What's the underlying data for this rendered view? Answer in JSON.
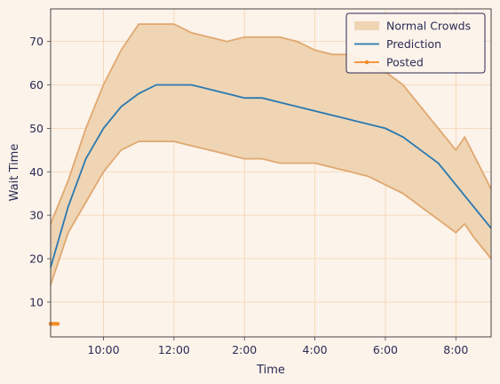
{
  "chart_data": {
    "type": "line",
    "title": "",
    "xlabel": "Time",
    "ylabel": "Wait Time",
    "xlim": [
      "08:30",
      "21:00"
    ],
    "ylim": [
      2,
      77.5
    ],
    "grid": true,
    "legend_position": "top-right",
    "x_ticks": [
      "10:00",
      "12:00",
      "2:00",
      "4:00",
      "6:00",
      "8:00"
    ],
    "y_ticks": [
      10,
      20,
      30,
      40,
      50,
      60,
      70
    ],
    "colors": {
      "background": "#fcf3ea",
      "band_fill": "#efd5b4",
      "band_edge": "#e0a870",
      "prediction": "#2a78b0",
      "posted": "#f28c28",
      "grid": "#f4d2ad",
      "text": "#2b2b55"
    },
    "series": [
      {
        "name": "Normal Crowds",
        "kind": "band",
        "x": [
          "08:30",
          "09:00",
          "09:30",
          "10:00",
          "10:30",
          "11:00",
          "11:30",
          "12:00",
          "12:30",
          "13:00",
          "13:30",
          "14:00",
          "14:30",
          "15:00",
          "15:30",
          "16:00",
          "16:30",
          "17:00",
          "17:30",
          "18:00",
          "18:30",
          "19:00",
          "19:30",
          "20:00",
          "20:15",
          "20:30",
          "21:00"
        ],
        "upper": [
          28,
          38,
          50,
          60,
          68,
          74,
          74,
          74,
          72,
          71,
          70,
          71,
          71,
          71,
          70,
          68,
          67,
          67,
          65,
          63,
          60,
          55,
          50,
          45,
          48,
          44,
          36
        ],
        "lower": [
          14,
          26,
          33,
          40,
          45,
          47,
          47,
          47,
          46,
          45,
          44,
          43,
          43,
          42,
          42,
          42,
          41,
          40,
          39,
          37,
          35,
          32,
          29,
          26,
          28,
          25,
          20
        ]
      },
      {
        "name": "Prediction",
        "kind": "line",
        "x": [
          "08:30",
          "09:00",
          "09:30",
          "10:00",
          "10:30",
          "11:00",
          "11:30",
          "12:00",
          "12:30",
          "13:00",
          "13:30",
          "14:00",
          "14:30",
          "15:00",
          "15:30",
          "16:00",
          "16:30",
          "17:00",
          "17:30",
          "18:00",
          "18:30",
          "19:00",
          "19:30",
          "20:00",
          "20:30",
          "21:00"
        ],
        "values": [
          18,
          32,
          43,
          50,
          55,
          58,
          60,
          60,
          60,
          59,
          58,
          57,
          57,
          56,
          55,
          54,
          53,
          52,
          51,
          50,
          48,
          45,
          42,
          37,
          32,
          27
        ]
      },
      {
        "name": "Posted",
        "kind": "line-marker",
        "x": [
          "08:30",
          "08:33",
          "08:36",
          "08:39",
          "08:42"
        ],
        "values": [
          5,
          5,
          5,
          5,
          5
        ]
      }
    ]
  }
}
